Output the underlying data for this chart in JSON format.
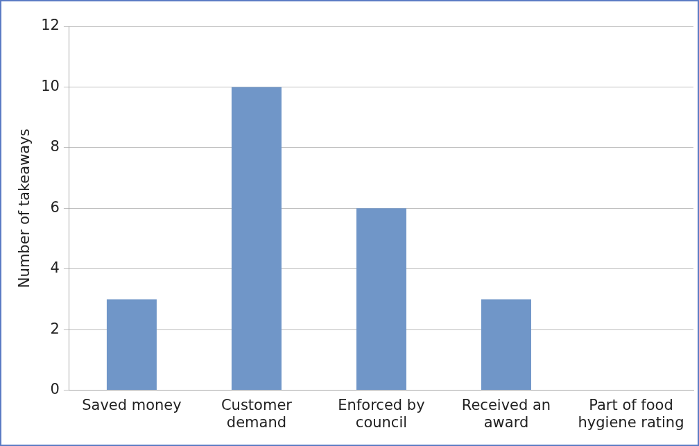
{
  "chart_data": {
    "type": "bar",
    "ylabel": "Number of takeaways",
    "categories": [
      "Saved money",
      "Customer demand",
      "Enforced by council",
      "Received an award",
      "Part of food hygiene rating"
    ],
    "values": [
      3,
      10,
      6,
      3,
      0
    ],
    "color": "#7096c8",
    "ylim": [
      0,
      12
    ],
    "yticks": [
      0,
      2,
      4,
      6,
      8,
      10,
      12
    ],
    "grid": "y",
    "legend": false
  }
}
